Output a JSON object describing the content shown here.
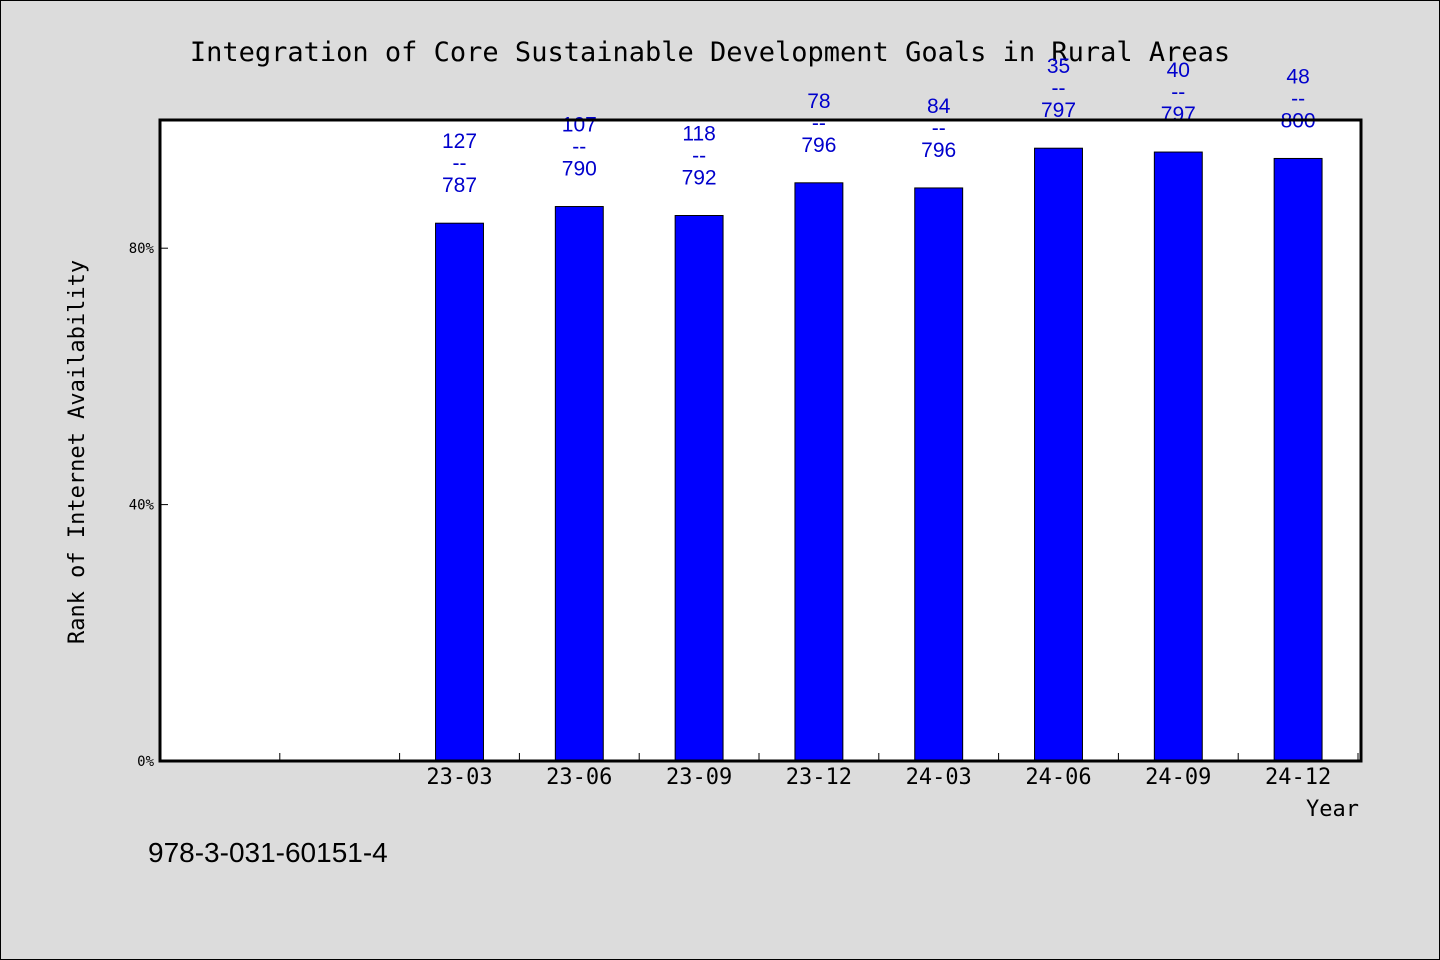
{
  "chart_data": {
    "type": "bar",
    "title": "Integration of Core Sustainable Development Goals in Rural Areas",
    "xlabel": "Year",
    "ylabel": "Rank of Internet Availability",
    "categories": [
      "23-03",
      "23-06",
      "23-09",
      "23-12",
      "24-03",
      "24-06",
      "24-09",
      "24-12"
    ],
    "values": [
      83.9,
      86.5,
      85.1,
      90.2,
      89.4,
      95.6,
      95.0,
      94.0
    ],
    "data_labels": [
      {
        "rank": "127",
        "sep": "--",
        "total": "787"
      },
      {
        "rank": "107",
        "sep": "--",
        "total": "790"
      },
      {
        "rank": "118",
        "sep": "--",
        "total": "792"
      },
      {
        "rank": "78",
        "sep": "--",
        "total": "796"
      },
      {
        "rank": "84",
        "sep": "--",
        "total": "796"
      },
      {
        "rank": "35",
        "sep": "--",
        "total": "797"
      },
      {
        "rank": "40",
        "sep": "--",
        "total": "797"
      },
      {
        "rank": "48",
        "sep": "--",
        "total": "800"
      }
    ],
    "yticks": [
      {
        "value": 0,
        "label": "0%"
      },
      {
        "value": 40,
        "label": "40%"
      },
      {
        "value": 80,
        "label": "80%"
      }
    ],
    "ylim": [
      0,
      100
    ],
    "empty_leading_slots": 2,
    "grid": false,
    "legend": "none",
    "bar_color": "#0000ff",
    "label_color": "#0000cc",
    "plot_background": "#ffffff",
    "page_background": "#dcdcdc"
  },
  "footer": {
    "isbn": "978-3-031-60151-4"
  }
}
